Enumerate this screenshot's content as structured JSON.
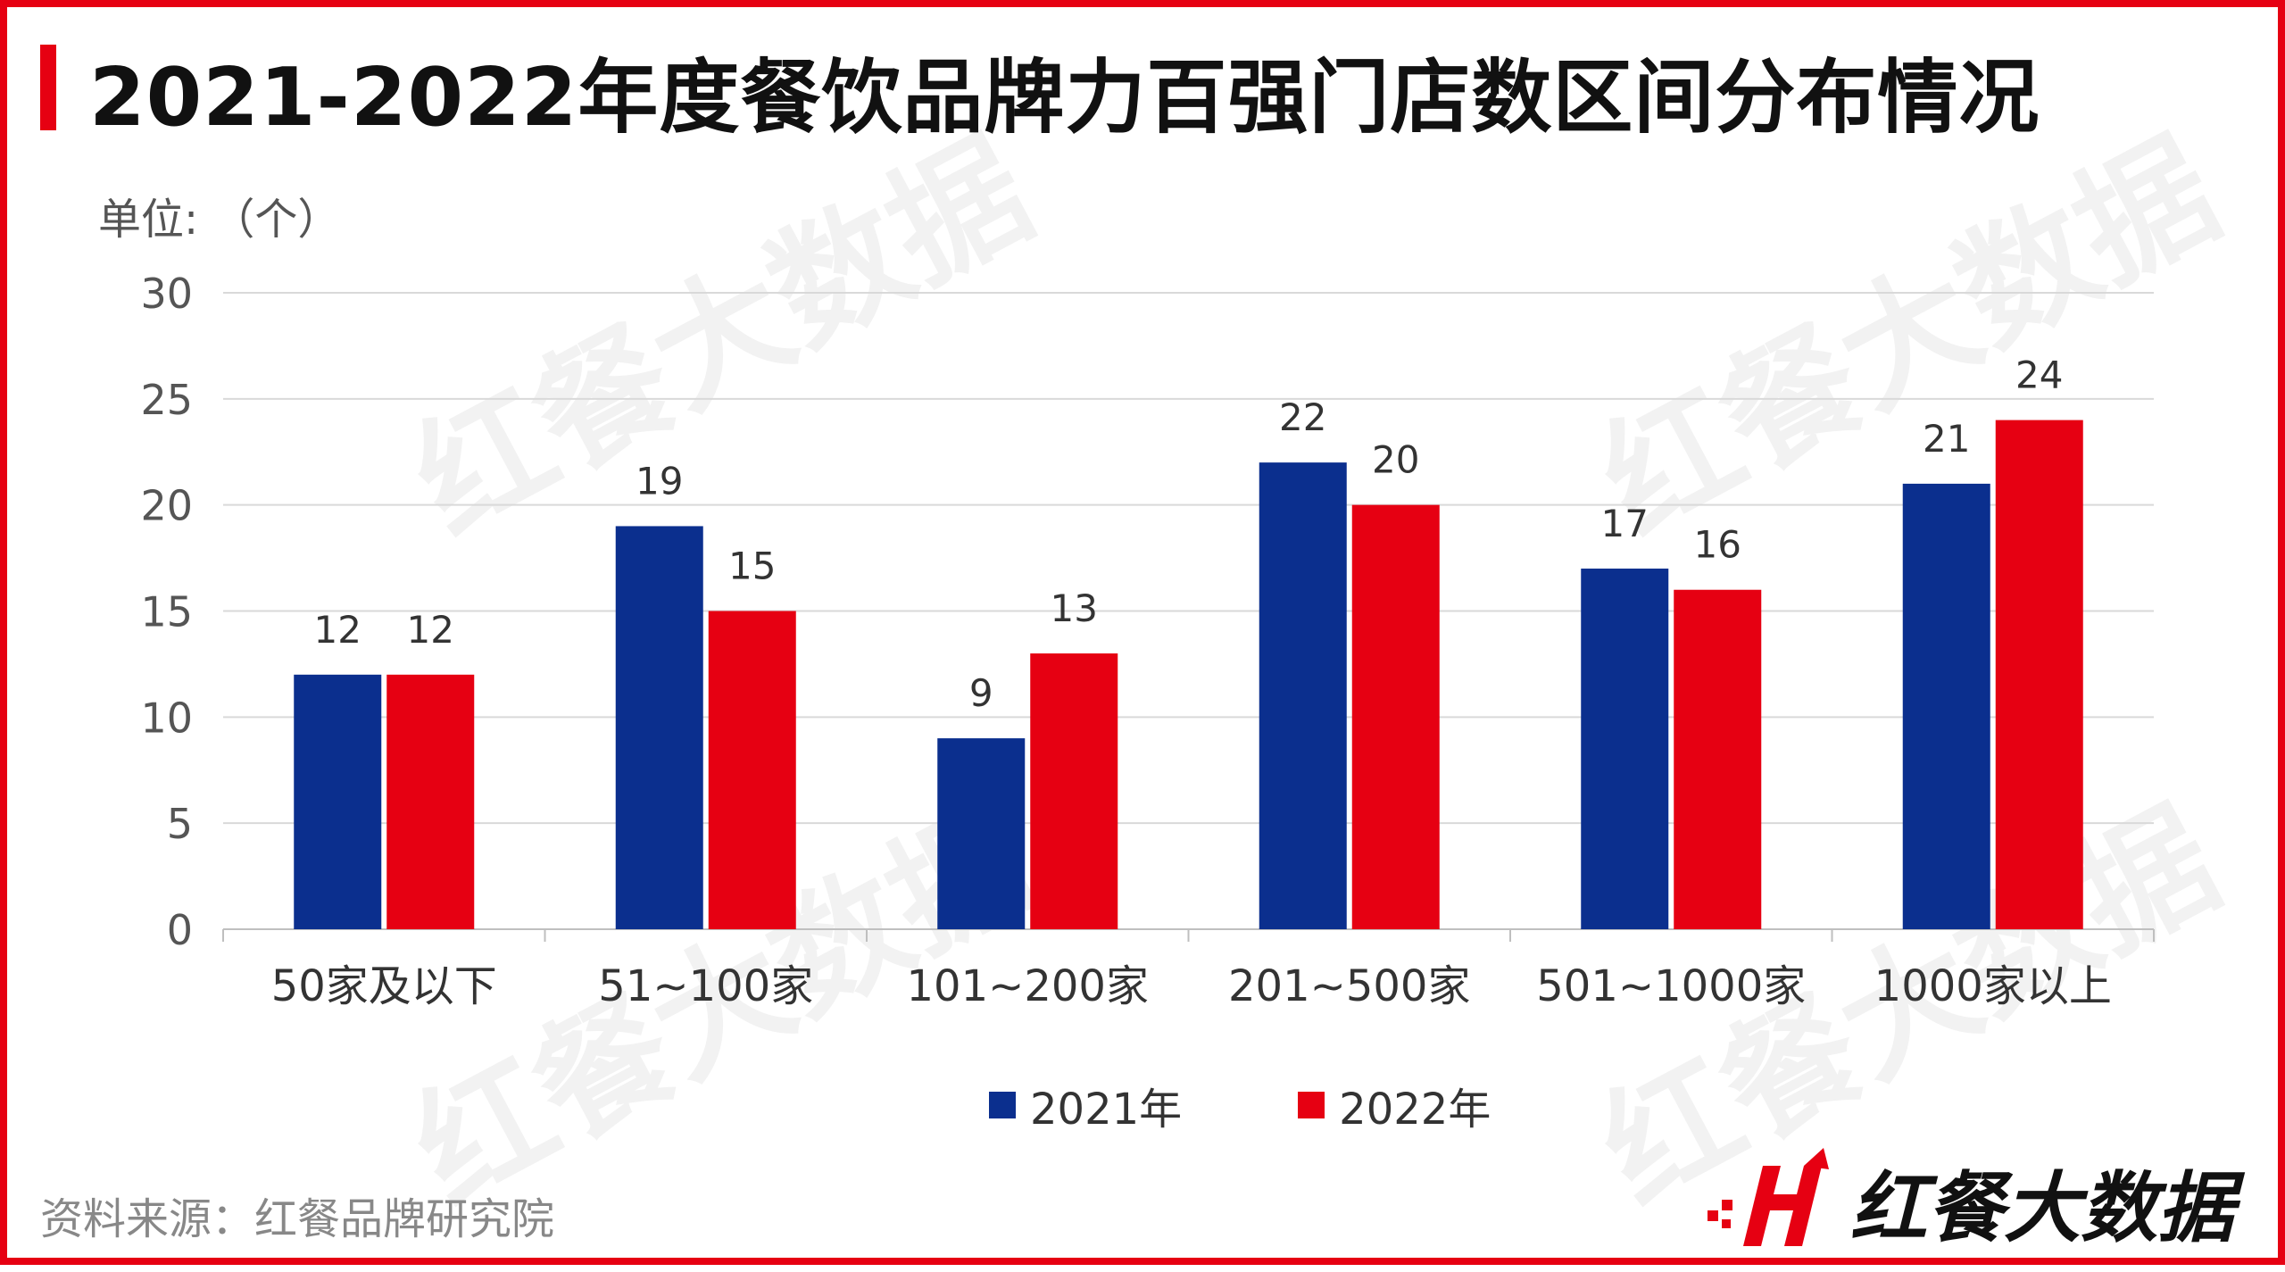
{
  "title": "2021-2022年度餐饮品牌力百强门店数区间分布情况",
  "unit_label": "单位: （个）",
  "source": "资料来源：红餐品牌研究院",
  "brand": {
    "name": "红餐大数据",
    "icon": "hongcan-logo-icon"
  },
  "watermark_text": "红餐大数据",
  "colors": {
    "accent": "#e60012",
    "series_2021": "#0b2f8e",
    "series_2022": "#e60012"
  },
  "chart_data": {
    "type": "bar",
    "title": "2021-2022年度餐饮品牌力百强门店数区间分布情况",
    "xlabel": "",
    "ylabel": "单位: （个）",
    "categories": [
      "50家及以下",
      "51~100家",
      "101~200家",
      "201~500家",
      "501~1000家",
      "1000家以上"
    ],
    "series": [
      {
        "name": "2021年",
        "values": [
          12,
          19,
          9,
          22,
          17,
          21
        ],
        "color": "#0b2f8e"
      },
      {
        "name": "2022年",
        "values": [
          12,
          15,
          13,
          20,
          16,
          24
        ],
        "color": "#e60012"
      }
    ],
    "ylim": [
      0,
      30
    ],
    "yticks": [
      0,
      5,
      10,
      15,
      20,
      25,
      30
    ],
    "grid": true,
    "legend_position": "bottom-center",
    "data_labels": true
  }
}
